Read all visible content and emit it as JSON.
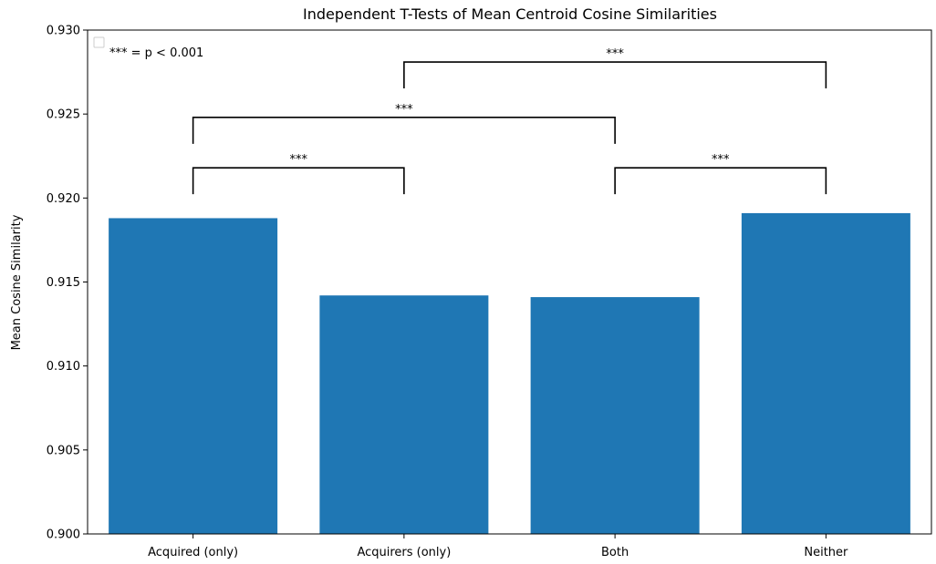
{
  "chart_data": {
    "type": "bar",
    "title": "Independent T-Tests of Mean Centroid Cosine Similarities",
    "xlabel": "",
    "ylabel": "Mean Cosine Similarity",
    "categories": [
      "Acquired (only)",
      "Acquirers (only)",
      "Both",
      "Neither"
    ],
    "values": [
      0.9188,
      0.9142,
      0.9141,
      0.9191
    ],
    "ylim": [
      0.9,
      0.93
    ],
    "yticks": [
      "0.900",
      "0.905",
      "0.910",
      "0.915",
      "0.920",
      "0.925",
      "0.930"
    ],
    "bar_color": "#1f77b4",
    "grid": false,
    "legend": {
      "placement": "top-left",
      "text": "*** = p < 0.001"
    },
    "significance": [
      {
        "from": 0,
        "to": 1,
        "level": 0.9218,
        "label": "***"
      },
      {
        "from": 0,
        "to": 2,
        "level": 0.9248,
        "label": "***"
      },
      {
        "from": 2,
        "to": 3,
        "level": 0.9218,
        "label": "***"
      },
      {
        "from": 1,
        "to": 3,
        "level": 0.9281,
        "label": "***"
      }
    ]
  }
}
